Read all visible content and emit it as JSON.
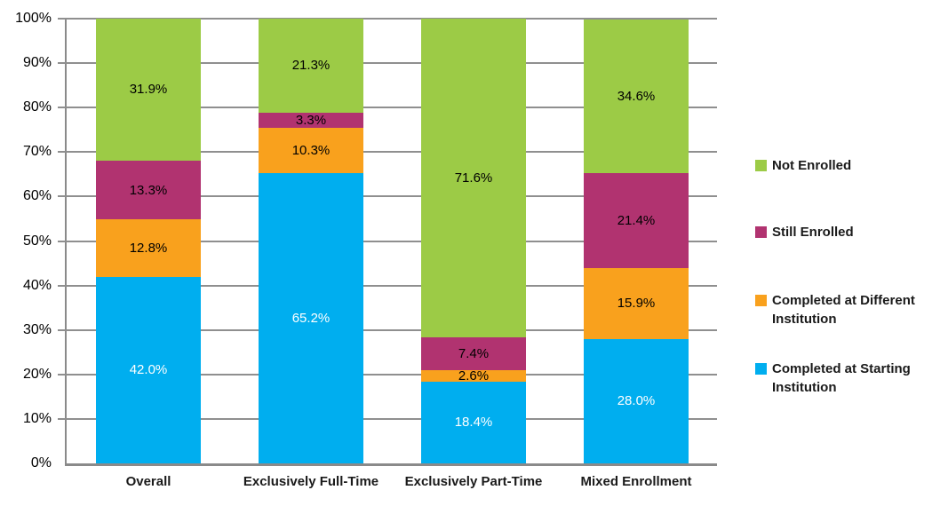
{
  "chart_data": {
    "type": "bar",
    "stacked": true,
    "title": "",
    "xlabel": "",
    "ylabel": "",
    "grid": true,
    "categories": [
      "Overall",
      "Exclusively Full-Time",
      "Exclusively Part-Time",
      "Mixed Enrollment"
    ],
    "series": [
      {
        "name": "Completed at Starting Institution",
        "color": "#00AEEF",
        "label_color": "#FFFFFF",
        "values": [
          42.0,
          65.2,
          18.4,
          28.0
        ],
        "labels": [
          "42.0%",
          "65.2%",
          "18.4%",
          "28.0%"
        ]
      },
      {
        "name": "Completed at Different Institution",
        "color": "#F9A11D",
        "label_color": "#000000",
        "values": [
          12.8,
          10.3,
          2.6,
          15.9
        ],
        "labels": [
          "12.8%",
          "10.3%",
          "2.6%",
          "15.9%"
        ]
      },
      {
        "name": "Still Enrolled",
        "color": "#B13370",
        "label_color": "#000000",
        "values": [
          13.3,
          3.3,
          7.4,
          21.4
        ],
        "labels": [
          "13.3%",
          "3.3%",
          "7.4%",
          "21.4%"
        ]
      },
      {
        "name": "Not Enrolled",
        "color": "#9CCB46",
        "label_color": "#000000",
        "values": [
          31.9,
          21.3,
          71.6,
          34.6
        ],
        "labels": [
          "31.9%",
          "21.3%",
          "71.6%",
          "34.6%"
        ]
      }
    ],
    "y_axis": {
      "min": 0,
      "max": 100,
      "step": 10,
      "tick_labels": [
        "0%",
        "10%",
        "20%",
        "30%",
        "40%",
        "50%",
        "60%",
        "70%",
        "80%",
        "90%",
        "100%"
      ]
    },
    "legend": {
      "position": "right",
      "items": [
        "Not Enrolled",
        "Still Enrolled",
        "Completed at Different Institution",
        "Completed at Starting Institution"
      ]
    },
    "axis_color": "#8A8A8A",
    "gridline_color": "#8F8F8F"
  }
}
